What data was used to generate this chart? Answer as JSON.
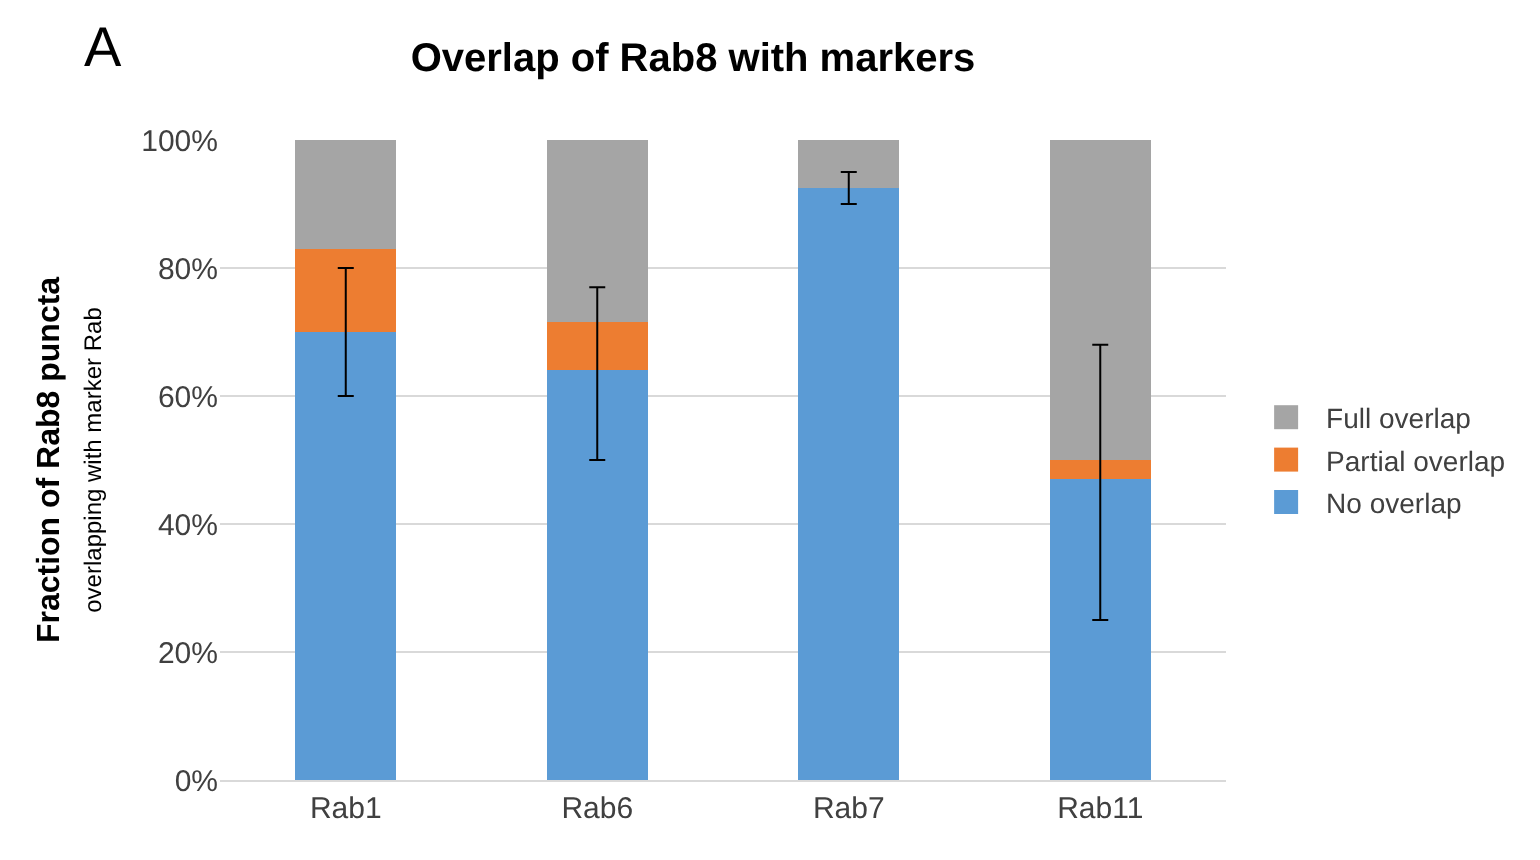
{
  "chart_data": {
    "type": "bar",
    "title": "Overlap of Rab8 with markers",
    "ylabel": "Fraction of Rab8 puncta\noverlapping with marker Rab",
    "annotations": [
      "A"
    ],
    "categories": [
      "Rab1",
      "Rab6",
      "Rab7",
      "Rab11"
    ],
    "stacked": true,
    "series": [
      {
        "name": "No overlap",
        "color": "#5b9bd5",
        "values": [
          70,
          64,
          92.5,
          47
        ],
        "errors": [
          [
            60,
            80
          ],
          [
            50,
            77
          ],
          [
            90,
            95
          ],
          [
            25,
            68
          ]
        ]
      },
      {
        "name": "Partial overlap",
        "color": "#ed7d31",
        "values": [
          13,
          7.5,
          0,
          3
        ]
      },
      {
        "name": "Full overlap",
        "color": "#a5a5a5",
        "values": [
          17,
          28.5,
          7.5,
          50
        ]
      }
    ],
    "ylim": [
      0,
      100
    ],
    "yticks": [
      {
        "value": 0,
        "label": "0%"
      },
      {
        "value": 20,
        "label": "20%"
      },
      {
        "value": 40,
        "label": "40%"
      },
      {
        "value": 60,
        "label": "60%"
      },
      {
        "value": 80,
        "label": "80%"
      },
      {
        "value": 100,
        "label": "100%"
      }
    ],
    "grid": "y",
    "legend": "right"
  }
}
